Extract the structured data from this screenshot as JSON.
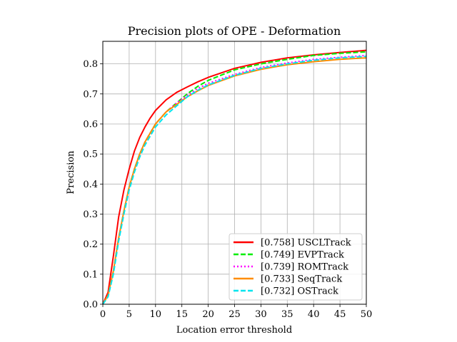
{
  "chart_data": {
    "type": "line",
    "title": "Precision plots of OPE - Deformation",
    "xlabel": "Location error threshold",
    "ylabel": "Precision",
    "xlim": [
      0,
      50
    ],
    "ylim": [
      0,
      0.875
    ],
    "xticks": [
      "0",
      "5",
      "10",
      "15",
      "20",
      "25",
      "30",
      "35",
      "40",
      "45",
      "50"
    ],
    "yticks": [
      "0.0",
      "0.1",
      "0.2",
      "0.3",
      "0.4",
      "0.5",
      "0.6",
      "0.7",
      "0.8"
    ],
    "grid": true,
    "legend_position": "lower-right",
    "x": [
      0,
      1,
      2,
      3,
      4,
      5,
      6,
      7,
      8,
      9,
      10,
      12,
      14,
      16,
      18,
      20,
      25,
      30,
      35,
      40,
      45,
      50
    ],
    "series": [
      {
        "name": "[0.758] USCLTrack",
        "color": "#ff0000",
        "dash": "solid",
        "values": [
          0.0,
          0.04,
          0.16,
          0.29,
          0.38,
          0.45,
          0.51,
          0.555,
          0.59,
          0.62,
          0.645,
          0.68,
          0.705,
          0.723,
          0.74,
          0.755,
          0.785,
          0.805,
          0.82,
          0.83,
          0.838,
          0.845
        ]
      },
      {
        "name": "[0.749] EVPTrack",
        "color": "#00ee00",
        "dash": "dashed",
        "values": [
          0.0,
          0.03,
          0.11,
          0.22,
          0.31,
          0.39,
          0.45,
          0.5,
          0.54,
          0.57,
          0.6,
          0.64,
          0.67,
          0.7,
          0.725,
          0.745,
          0.78,
          0.8,
          0.815,
          0.828,
          0.835,
          0.84
        ]
      },
      {
        "name": "[0.739] ROMTrack",
        "color": "#ff00ff",
        "dash": "dotted",
        "values": [
          0.0,
          0.03,
          0.11,
          0.22,
          0.31,
          0.39,
          0.45,
          0.5,
          0.54,
          0.57,
          0.6,
          0.64,
          0.67,
          0.695,
          0.718,
          0.735,
          0.765,
          0.788,
          0.803,
          0.815,
          0.822,
          0.828
        ]
      },
      {
        "name": "[0.733] SeqTrack",
        "color": "#ff8c00",
        "dash": "solid",
        "values": [
          0.0,
          0.03,
          0.11,
          0.22,
          0.31,
          0.39,
          0.45,
          0.5,
          0.54,
          0.57,
          0.6,
          0.64,
          0.665,
          0.69,
          0.71,
          0.728,
          0.76,
          0.782,
          0.797,
          0.807,
          0.815,
          0.82
        ]
      },
      {
        "name": "[0.732] OSTrack",
        "color": "#00e5ee",
        "dash": "dashed",
        "values": [
          0.0,
          0.025,
          0.1,
          0.21,
          0.3,
          0.38,
          0.44,
          0.49,
          0.53,
          0.56,
          0.59,
          0.63,
          0.66,
          0.69,
          0.712,
          0.73,
          0.762,
          0.785,
          0.8,
          0.812,
          0.82,
          0.825
        ]
      }
    ]
  }
}
